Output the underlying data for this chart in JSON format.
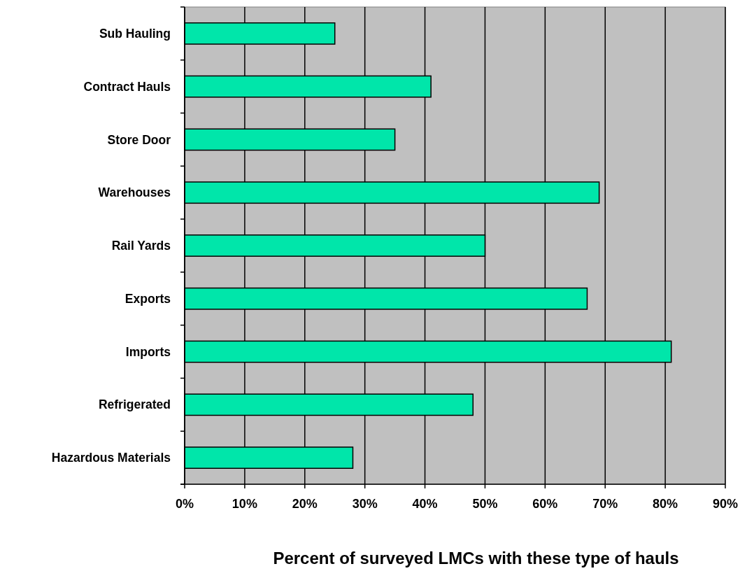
{
  "chart_data": {
    "type": "bar",
    "orientation": "horizontal",
    "xlabel": "Percent of surveyed LMCs with these type of hauls",
    "categories": [
      "Sub Hauling",
      "Contract Hauls",
      "Store Door",
      "Warehouses",
      "Rail Yards",
      "Exports",
      "Imports",
      "Refrigerated",
      "Hazardous Materials"
    ],
    "values": [
      25,
      41,
      35,
      69,
      50,
      67,
      81,
      48,
      28
    ],
    "color": "#00e6aa",
    "xlim": [
      0,
      90
    ],
    "xticks": [
      {
        "value": 0,
        "label": "0%"
      },
      {
        "value": 10,
        "label": "10%"
      },
      {
        "value": 20,
        "label": "20%"
      },
      {
        "value": 30,
        "label": "30%"
      },
      {
        "value": 40,
        "label": "40%"
      },
      {
        "value": 50,
        "label": "50%"
      },
      {
        "value": 60,
        "label": "60%"
      },
      {
        "value": 70,
        "label": "70%"
      },
      {
        "value": 80,
        "label": "80%"
      },
      {
        "value": 90,
        "label": "90%"
      }
    ],
    "grid": "x"
  }
}
